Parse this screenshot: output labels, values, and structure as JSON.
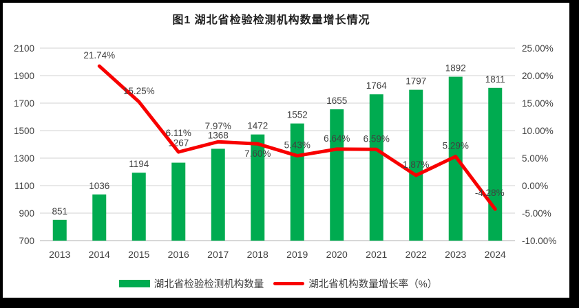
{
  "chart_data": {
    "type": "bar",
    "title": "图1 湖北省检验检测机构数量增长情况",
    "categories": [
      "2013",
      "2014",
      "2015",
      "2016",
      "2017",
      "2018",
      "2019",
      "2020",
      "2021",
      "2022",
      "2023",
      "2024"
    ],
    "series": [
      {
        "name": "湖北省检验检测机构数量",
        "type": "bar",
        "axis": "left",
        "color": "#00ab50",
        "values": [
          851,
          1036,
          1194,
          1267,
          1368,
          1472,
          1552,
          1655,
          1764,
          1797,
          1892,
          1811
        ],
        "labels": [
          "851",
          "1036",
          "1194",
          "1267",
          "1368",
          "1472",
          "1552",
          "1655",
          "1764",
          "1797",
          "1892",
          "1811"
        ]
      },
      {
        "name": "湖北省机构数量增长率（%）",
        "type": "line",
        "axis": "right",
        "color": "#f80000",
        "start_index": 1,
        "values": [
          21.74,
          15.25,
          6.11,
          7.97,
          7.6,
          5.43,
          6.64,
          6.59,
          1.87,
          5.29,
          -4.28
        ],
        "labels": [
          "21.74%",
          "15.25%",
          "6.11%",
          "7.97%",
          "7.60%",
          "5.43%",
          "6.64%",
          "6.59%",
          "1.87%",
          "5.29%",
          "-4.28%"
        ]
      }
    ],
    "left_axis": {
      "min": 700,
      "max": 2100,
      "step": 200,
      "ticks": [
        "2100",
        "1900",
        "1700",
        "1500",
        "1300",
        "1100",
        "900",
        "700"
      ]
    },
    "right_axis": {
      "min": -10,
      "max": 25,
      "step": 5,
      "ticks": [
        "25.00%",
        "20.00%",
        "15.00%",
        "10.00%",
        "5.00%",
        "0.00%",
        "-5.00%",
        "-10.00%"
      ]
    },
    "grid": true,
    "legend_position": "bottom",
    "colors": {
      "grid": "#d9d9d9",
      "axis_line": "#bfbfbf",
      "text": "#404040"
    }
  },
  "legend": {
    "bar_label": "湖北省检验检测机构数量",
    "line_label": "湖北省机构数量增长率（%）"
  }
}
